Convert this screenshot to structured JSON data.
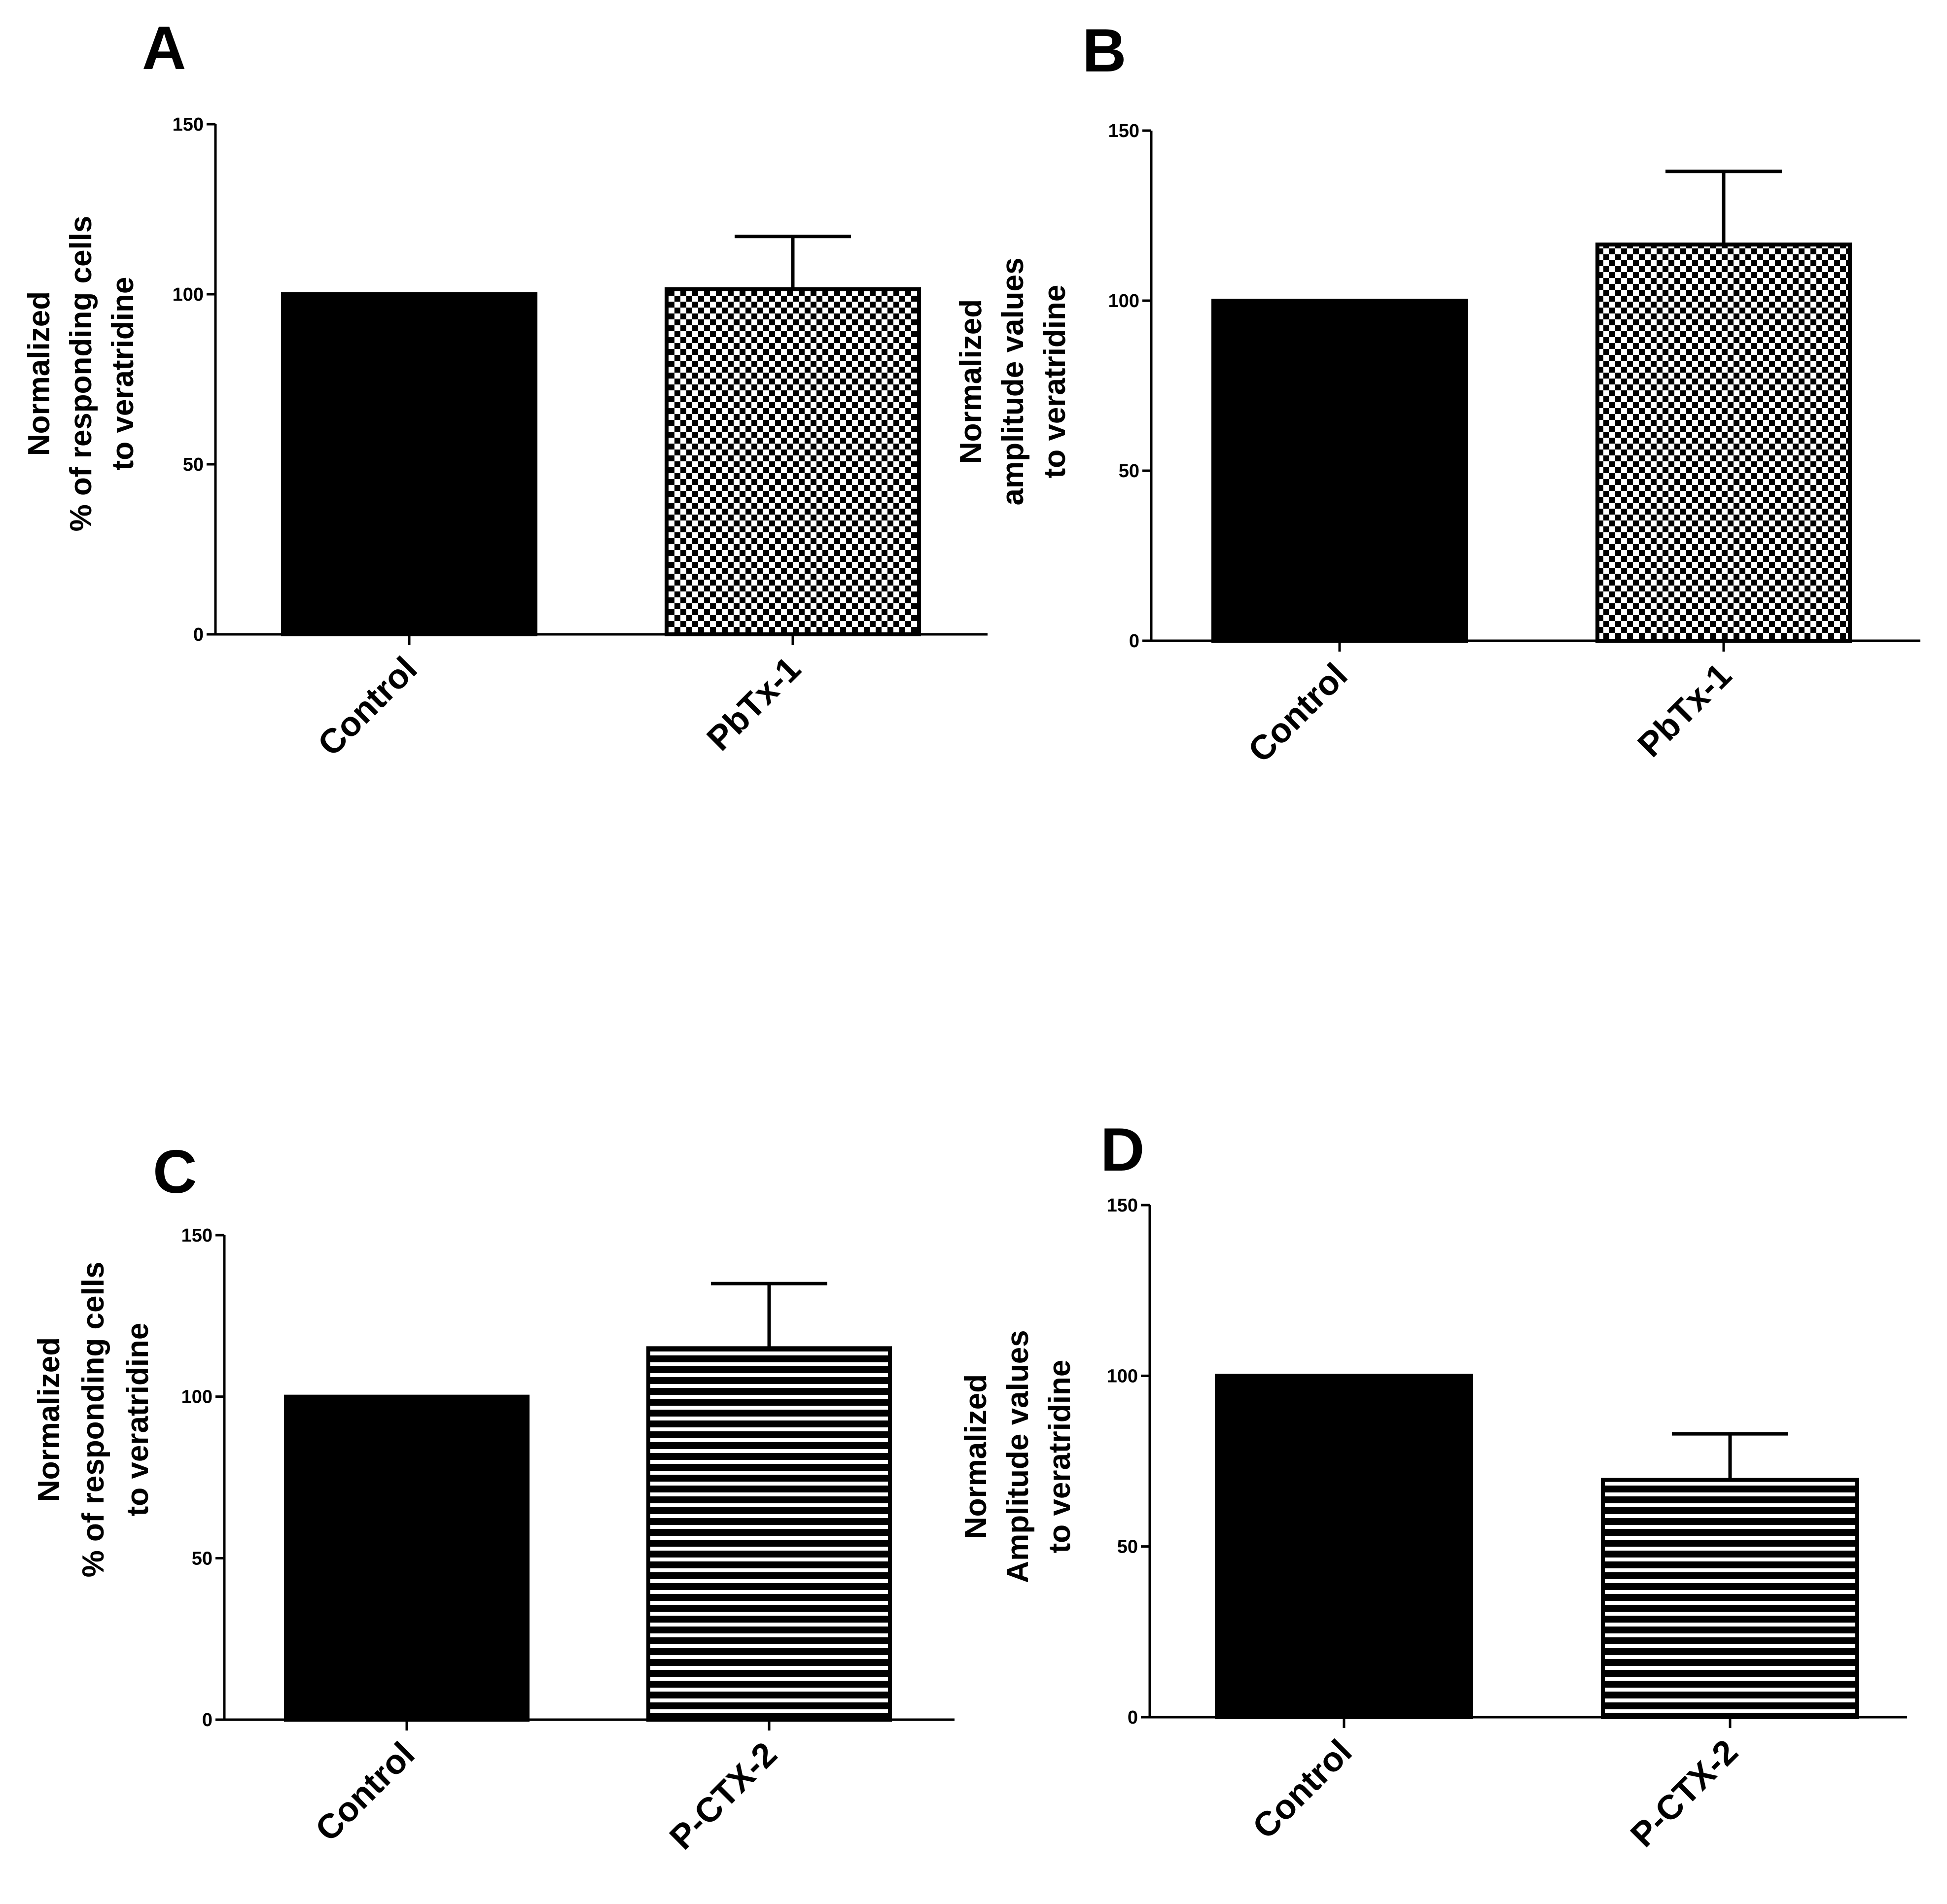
{
  "figure": {
    "panels": [
      "A",
      "B",
      "C",
      "D"
    ]
  },
  "chart_data": [
    {
      "panel": "A",
      "type": "bar",
      "title": "",
      "categories": [
        "Control",
        "PbTx-1"
      ],
      "values": [
        100,
        101.5
      ],
      "error_upper": [
        0,
        15.5
      ],
      "fill_patterns": [
        "solid",
        "checker"
      ],
      "ylabel_lines": [
        "Normalized",
        "% of responding cells",
        "to veratridine"
      ],
      "ylim": [
        0,
        150
      ],
      "yticks": [
        0,
        50,
        100,
        150
      ],
      "grid": false
    },
    {
      "panel": "B",
      "type": "bar",
      "title": "",
      "categories": [
        "Control",
        "PbTx-1"
      ],
      "values": [
        100,
        116.5
      ],
      "error_upper": [
        0,
        21.5
      ],
      "fill_patterns": [
        "solid",
        "checker"
      ],
      "ylabel_lines": [
        "Normalized",
        "amplitude values",
        "to veratridine"
      ],
      "ylim": [
        0,
        150
      ],
      "yticks": [
        0,
        50,
        100,
        150
      ],
      "grid": false
    },
    {
      "panel": "C",
      "type": "bar",
      "title": "",
      "categories": [
        "Control",
        "P-CTX-2"
      ],
      "values": [
        100,
        115
      ],
      "error_upper": [
        0,
        20
      ],
      "fill_patterns": [
        "solid",
        "hstripes"
      ],
      "ylabel_lines": [
        "Normalized",
        "% of responding cells",
        "to veratridine"
      ],
      "ylim": [
        0,
        150
      ],
      "yticks": [
        0,
        50,
        100,
        150
      ],
      "grid": false
    },
    {
      "panel": "D",
      "type": "bar",
      "title": "",
      "categories": [
        "Control",
        "P-CTX-2"
      ],
      "values": [
        100,
        69.5
      ],
      "error_upper": [
        0,
        13.5
      ],
      "fill_patterns": [
        "solid",
        "hstripes"
      ],
      "ylabel_lines": [
        "Normalized",
        "Amplitude values",
        "to veratridine"
      ],
      "ylim": [
        0,
        150
      ],
      "yticks": [
        0,
        50,
        100,
        150
      ],
      "grid": false
    }
  ],
  "colors": {
    "bar_solid": "#000000",
    "axis": "#000000",
    "pattern_light": "#ffffff",
    "pattern_dark": "#000000"
  }
}
